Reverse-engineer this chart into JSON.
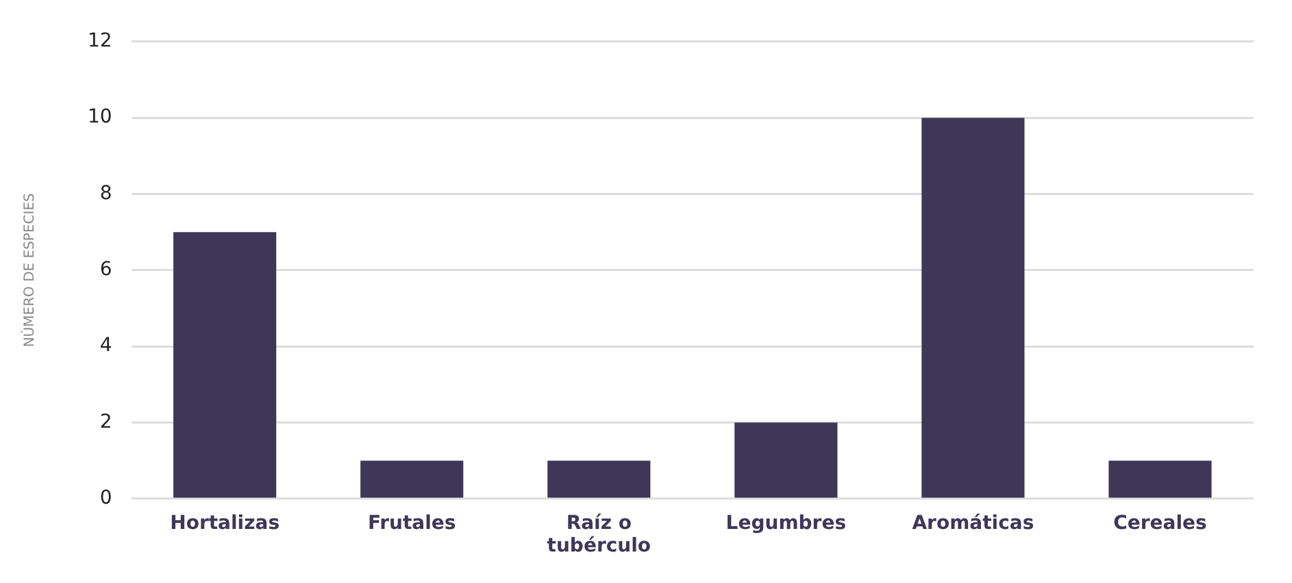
{
  "chart_data": {
    "type": "bar",
    "ylabel": "NÚMERO DE ESPECIES",
    "categories": [
      "Hortalizas",
      "Frutales",
      "Raíz o tubérculo",
      "Legumbres",
      "Aromáticas",
      "Cereales"
    ],
    "values": [
      7,
      1,
      1,
      2,
      10,
      1
    ],
    "color": "#3e3758",
    "ylim": [
      0,
      12
    ],
    "yticks": [
      0,
      2,
      4,
      6,
      8,
      10,
      12
    ],
    "grid": "y"
  }
}
